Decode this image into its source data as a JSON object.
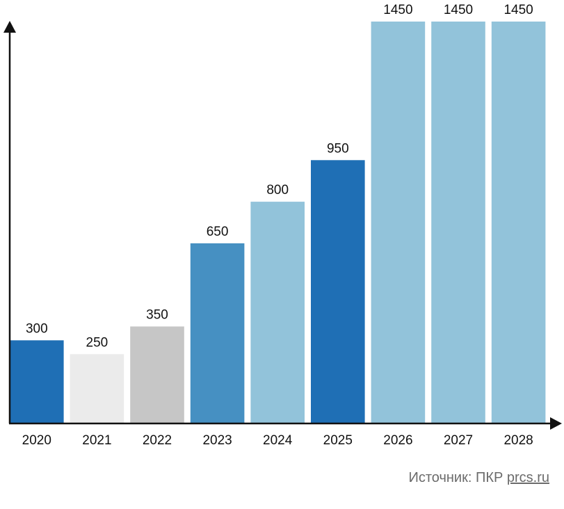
{
  "chart_data": {
    "type": "bar",
    "categories": [
      "2020",
      "2021",
      "2022",
      "2023",
      "2024",
      "2025",
      "2026",
      "2027",
      "2028"
    ],
    "values": [
      300,
      250,
      350,
      650,
      800,
      950,
      1450,
      1450,
      1450
    ],
    "bar_colors": [
      "#1f6fb5",
      "#ebebeb",
      "#c6c6c6",
      "#4690c2",
      "#92c3da",
      "#1f6fb5",
      "#92c3da",
      "#92c3da",
      "#92c3da"
    ],
    "data_labels": [
      "300",
      "250",
      "350",
      "650",
      "800",
      "950",
      "1450",
      "1450",
      "1450"
    ],
    "title": "",
    "xlabel": "",
    "ylabel": "",
    "ylim": [
      0,
      1450
    ],
    "grid": false
  },
  "source": {
    "prefix": "Источник: ПКР",
    "site": "prcs.ru"
  }
}
